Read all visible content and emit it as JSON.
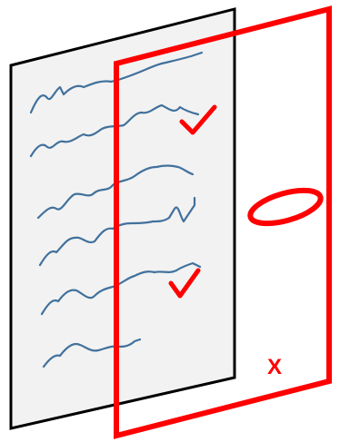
{
  "colors": {
    "paper_fill": "#f2f2f2",
    "paper_border": "#000000",
    "scribble": "#41719c",
    "overlay_red": "#ff0000",
    "background": "#ffffff"
  },
  "overlay": {
    "x_mark": "X"
  }
}
